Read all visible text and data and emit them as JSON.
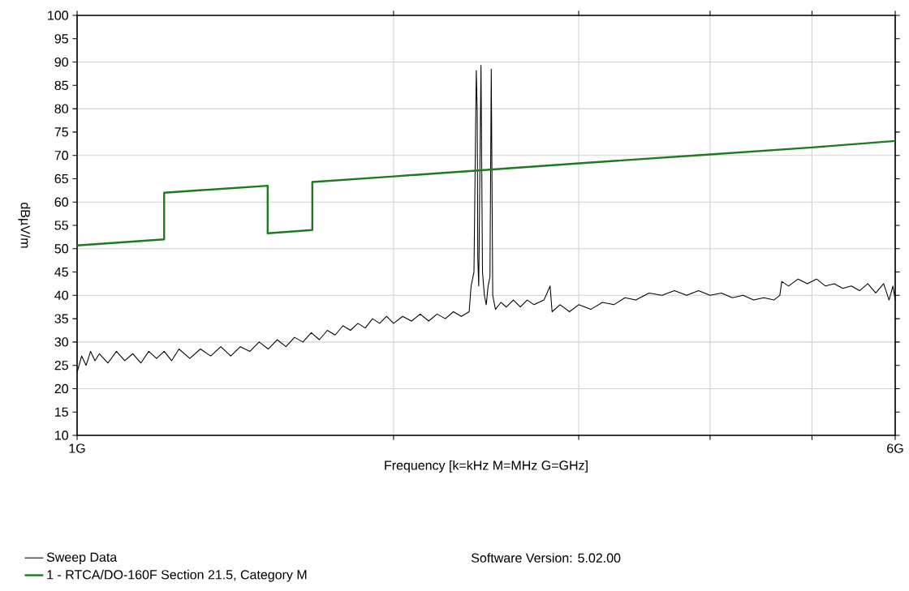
{
  "chart_data": {
    "type": "line",
    "xlabel": "Frequency [k=kHz M=MHz G=GHz]",
    "ylabel": "dBµV/m",
    "log": "x",
    "xlim": [
      1,
      6
    ],
    "xticks": [
      {
        "value": 1,
        "label": "1G"
      },
      {
        "value": 2,
        "label": null
      },
      {
        "value": 3,
        "label": null
      },
      {
        "value": 4,
        "label": null
      },
      {
        "value": 5,
        "label": null
      },
      {
        "value": 6,
        "label": "6G"
      }
    ],
    "ylim": [
      10,
      100
    ],
    "yticks": [
      10,
      15,
      20,
      25,
      30,
      35,
      40,
      45,
      50,
      55,
      60,
      65,
      70,
      75,
      80,
      85,
      90,
      95,
      100
    ],
    "grid": true,
    "legend": "bottom",
    "annotations": [
      "Software Version: 5.02.00"
    ],
    "series": [
      {
        "name": "Sweep Data",
        "color": "#000000",
        "x": [
          1.0,
          1.01,
          1.02,
          1.03,
          1.04,
          1.05,
          1.07,
          1.09,
          1.11,
          1.13,
          1.15,
          1.17,
          1.19,
          1.21,
          1.23,
          1.25,
          1.28,
          1.31,
          1.34,
          1.37,
          1.4,
          1.43,
          1.46,
          1.49,
          1.52,
          1.55,
          1.58,
          1.61,
          1.64,
          1.67,
          1.7,
          1.73,
          1.76,
          1.79,
          1.82,
          1.85,
          1.88,
          1.91,
          1.94,
          1.97,
          2.0,
          2.04,
          2.08,
          2.12,
          2.16,
          2.2,
          2.24,
          2.28,
          2.32,
          2.36,
          2.37,
          2.385,
          2.397,
          2.402,
          2.405,
          2.41,
          2.422,
          2.43,
          2.44,
          2.45,
          2.46,
          2.47,
          2.477,
          2.485,
          2.5,
          2.53,
          2.56,
          2.6,
          2.64,
          2.68,
          2.72,
          2.78,
          2.818,
          2.83,
          2.88,
          2.94,
          3.0,
          3.08,
          3.16,
          3.24,
          3.32,
          3.4,
          3.5,
          3.6,
          3.7,
          3.8,
          3.9,
          4.0,
          4.1,
          4.2,
          4.3,
          4.4,
          4.5,
          4.6,
          4.66,
          4.68,
          4.75,
          4.85,
          4.95,
          5.05,
          5.15,
          5.25,
          5.35,
          5.45,
          5.55,
          5.65,
          5.75,
          5.85,
          5.92,
          5.97,
          6.0
        ],
        "values": [
          23.5,
          27,
          25,
          28,
          26,
          27.5,
          25.5,
          28,
          26,
          27.5,
          25.5,
          28,
          26.5,
          28,
          26,
          28.5,
          26.5,
          28.5,
          27,
          29,
          27,
          29,
          28,
          30,
          28.5,
          30.5,
          29,
          31,
          30,
          32,
          30.5,
          32.5,
          31.5,
          33.5,
          32.5,
          34,
          33,
          35,
          34,
          35.5,
          34,
          35.5,
          34.5,
          36,
          34.5,
          36,
          35,
          36.5,
          35.5,
          36.5,
          42,
          45,
          88.2,
          79.5,
          48,
          42,
          89.3,
          45,
          40,
          38,
          42,
          44,
          88.5,
          40,
          37,
          38.5,
          37.5,
          39,
          37.5,
          39,
          38,
          39,
          42,
          36.5,
          38,
          36.5,
          38,
          37,
          38.5,
          38,
          39.5,
          39,
          40.5,
          40,
          41,
          40,
          41,
          40,
          40.5,
          39.5,
          40,
          39,
          39.5,
          39,
          40,
          43,
          42,
          43.5,
          42.5,
          43.5,
          42,
          42.5,
          41.5,
          42,
          41,
          42.5,
          40.5,
          42.5,
          39,
          42,
          39
        ]
      },
      {
        "name": "1 - RTCA/DO-160F Section 21.5, Category M",
        "color": "#1f7a1f",
        "x": [
          1,
          1.21,
          1.21,
          1.518,
          1.518,
          1.674,
          1.674,
          2,
          3,
          4,
          5,
          6
        ],
        "values": [
          50.7,
          52,
          62,
          63.5,
          53.3,
          54,
          64.3,
          65.5,
          68.3,
          70.2,
          71.7,
          73.1
        ]
      }
    ]
  }
}
